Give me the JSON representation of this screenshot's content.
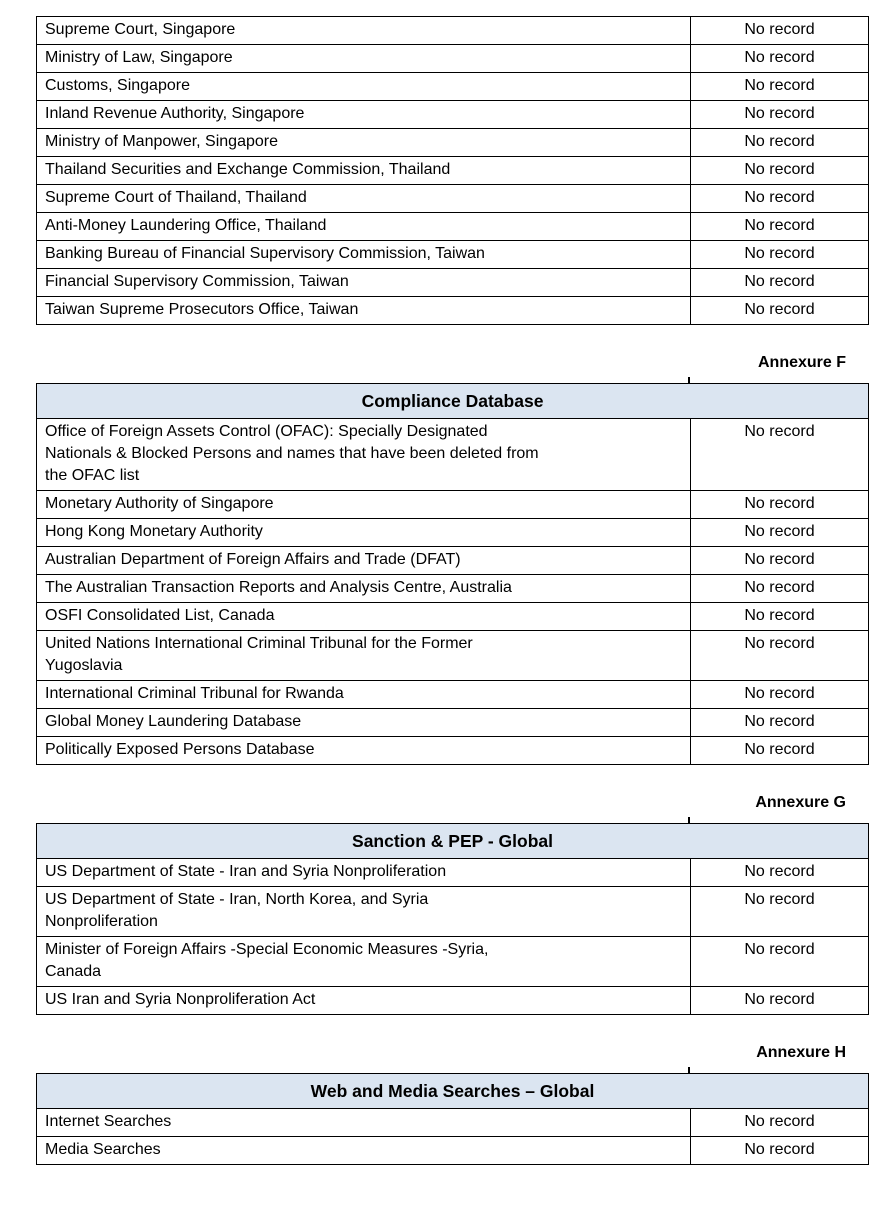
{
  "result_value": "No record",
  "colors": {
    "table_header_fill": "#dbe5f1",
    "table_border": "#000000",
    "page_background": "#ffffff",
    "text": "#000000"
  },
  "sections": [
    {
      "annexure": "",
      "title": "",
      "rows": [
        {
          "source": "Supreme Court, Singapore",
          "result": "No record"
        },
        {
          "source": "Ministry of Law, Singapore",
          "result": "No record"
        },
        {
          "source": "Customs, Singapore",
          "result": "No record"
        },
        {
          "source": "Inland Revenue Authority, Singapore",
          "result": "No record"
        },
        {
          "source": "Ministry of Manpower, Singapore",
          "result": "No record"
        },
        {
          "source": "Thailand Securities and Exchange Commission, Thailand",
          "result": "No record"
        },
        {
          "source": "Supreme Court of Thailand, Thailand",
          "result": "No record"
        },
        {
          "source": "Anti-Money Laundering Office, Thailand",
          "result": "No record"
        },
        {
          "source": "Banking Bureau of Financial Supervisory Commission, Taiwan",
          "result": "No record"
        },
        {
          "source": "Financial Supervisory Commission, Taiwan",
          "result": "No record"
        },
        {
          "source": "Taiwan Supreme Prosecutors Office, Taiwan",
          "result": "No record"
        }
      ]
    },
    {
      "annexure": "Annexure F",
      "title": "Compliance Database",
      "rows": [
        {
          "source": "Office of Foreign Assets Control (OFAC): Specially Designated\nNationals & Blocked Persons and names that have been deleted from\nthe OFAC list",
          "result": "No record"
        },
        {
          "source": "Monetary Authority of Singapore",
          "result": "No record"
        },
        {
          "source": "Hong Kong Monetary Authority",
          "result": "No record"
        },
        {
          "source": "Australian Department of Foreign Affairs and Trade (DFAT)",
          "result": "No record"
        },
        {
          "source": "The Australian Transaction Reports and Analysis Centre, Australia",
          "result": "No record"
        },
        {
          "source": "OSFI Consolidated List, Canada",
          "result": "No record"
        },
        {
          "source": "United Nations International Criminal Tribunal for the Former\nYugoslavia",
          "result": "No record"
        },
        {
          "source": "International Criminal Tribunal for Rwanda",
          "result": "No record"
        },
        {
          "source": "Global Money Laundering Database",
          "result": "No record"
        },
        {
          "source": "Politically Exposed Persons Database",
          "result": "No record"
        }
      ]
    },
    {
      "annexure": "Annexure G",
      "title": "Sanction & PEP - Global",
      "rows": [
        {
          "source": "US Department of State - Iran and Syria Nonproliferation",
          "result": "No record"
        },
        {
          "source": "US Department of State - Iran, North Korea, and Syria\nNonproliferation",
          "result": "No record"
        },
        {
          "source": "Minister of Foreign Affairs -Special Economic Measures -Syria,\nCanada",
          "result": "No record"
        },
        {
          "source": "US Iran and Syria Nonproliferation Act",
          "result": "No record"
        }
      ]
    },
    {
      "annexure": "Annexure H",
      "title": "Web and Media Searches – Global",
      "rows": [
        {
          "source": "Internet Searches",
          "result": "No record"
        },
        {
          "source": "Media Searches",
          "result": "No record"
        }
      ]
    }
  ]
}
